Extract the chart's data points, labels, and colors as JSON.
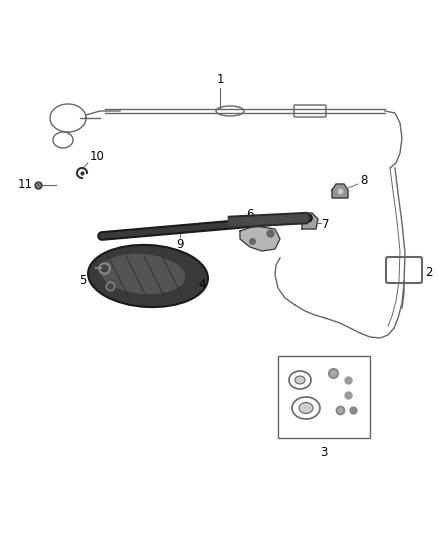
{
  "background_color": "#ffffff",
  "diagram_color": "#666666",
  "dark_color": "#333333",
  "label_color": "#000000",
  "fig_width": 4.38,
  "fig_height": 5.33,
  "dpi": 100,
  "label_fontsize": 8.5
}
